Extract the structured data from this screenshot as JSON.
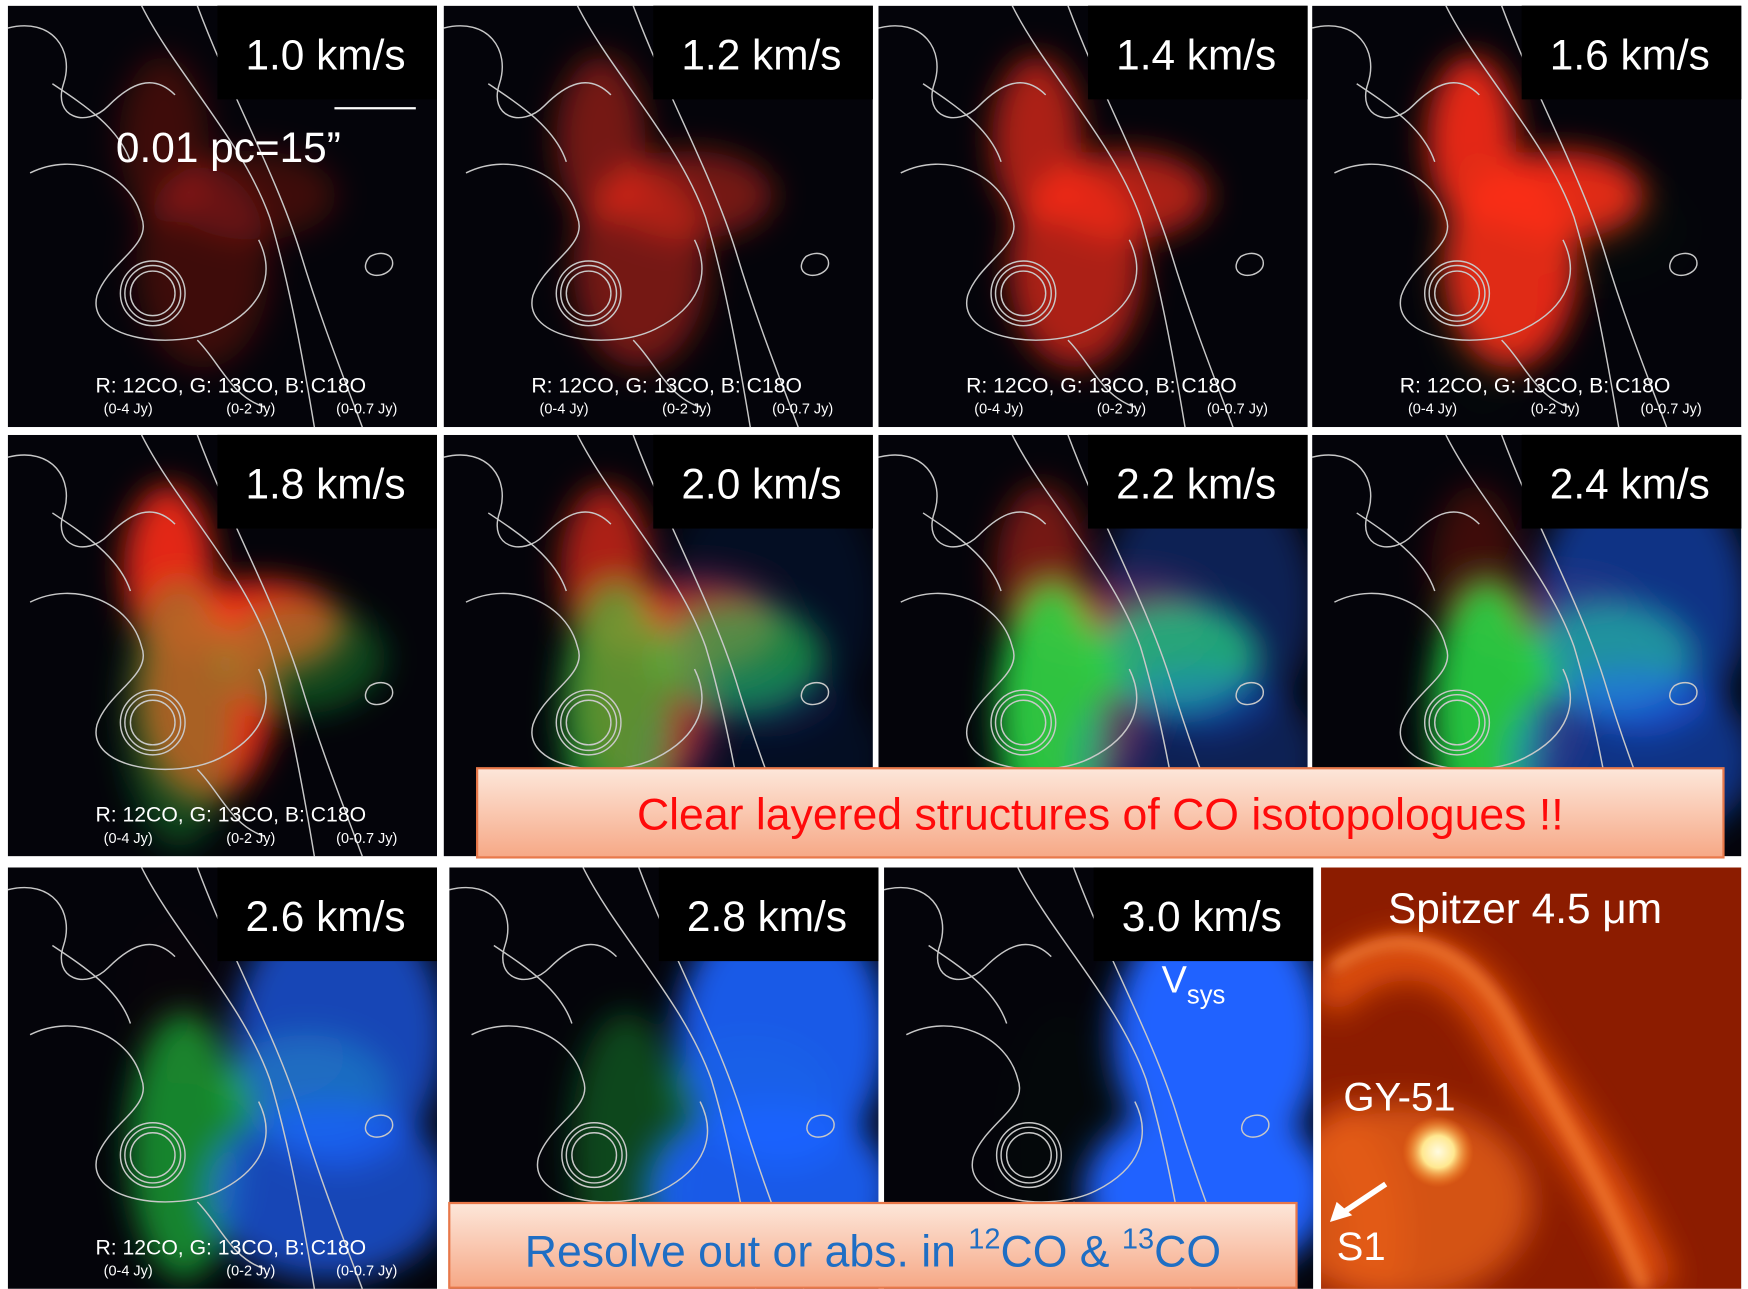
{
  "panels": [
    {
      "label": "1.0 km/s",
      "legend": {
        "channels": "R: 12CO, G: 13CO, B: C18O",
        "ranges": [
          "(0-4 Jy)",
          "(0-2 Jy)",
          "(0-0.7 Jy)"
        ]
      }
    },
    {
      "label": "1.2 km/s",
      "legend": {
        "channels": "R: 12CO, G: 13CO, B: C18O",
        "ranges": [
          "(0-4 Jy)",
          "(0-2 Jy)",
          "(0-0.7 Jy)"
        ]
      }
    },
    {
      "label": "1.4 km/s",
      "legend": {
        "channels": "R: 12CO, G: 13CO, B: C18O",
        "ranges": [
          "(0-4 Jy)",
          "(0-2 Jy)",
          "(0-0.7 Jy)"
        ]
      }
    },
    {
      "label": "1.6 km/s",
      "legend": {
        "channels": "R: 12CO, G: 13CO, B: C18O",
        "ranges": [
          "(0-4 Jy)",
          "(0-2 Jy)",
          "(0-0.7 Jy)"
        ]
      }
    },
    {
      "label": "1.8 km/s",
      "legend": {
        "channels": "R: 12CO, G: 13CO, B: C18O",
        "ranges": [
          "(0-4 Jy)",
          "(0-2 Jy)",
          "(0-0.7 Jy)"
        ]
      }
    },
    {
      "label": "2.0 km/s"
    },
    {
      "label": "2.2 km/s"
    },
    {
      "label": "2.4 km/s"
    },
    {
      "label": "2.6 km/s",
      "legend": {
        "channels": "R: 12CO, G: 13CO, B: C18O",
        "ranges": [
          "(0-4 Jy)",
          "(0-2 Jy)",
          "(0-0.7 Jy)"
        ]
      }
    },
    {
      "label": "2.8 km/s"
    },
    {
      "label": "3.0 km/s"
    }
  ],
  "scale_bar": "0.01 pc=15”",
  "vsys": {
    "main": "V",
    "sub": "sys"
  },
  "spitzer": {
    "title": "Spitzer 4.5 μm",
    "source": "GY-51",
    "arrow_label": "S1"
  },
  "callouts": [
    {
      "text": "Clear layered structures of CO isotopologues !!"
    },
    {
      "parts": [
        "Resolve out or abs. in ",
        "12",
        "CO & ",
        "13",
        "CO"
      ]
    }
  ]
}
